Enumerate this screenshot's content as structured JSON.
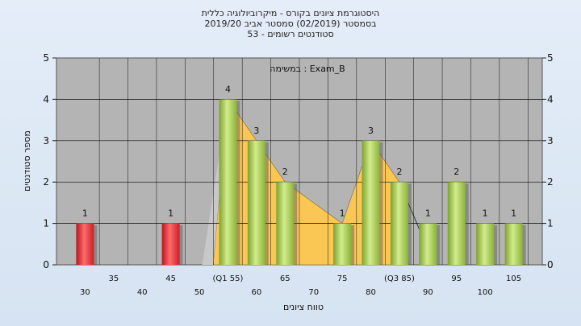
{
  "chart_data": {
    "type": "bar",
    "title_lines": [
      "היסטוגרמת ציונים בקורס - מיקרוביולוגיה כללית",
      "בסמסטר  (02/2019)  סמסטר אביב 2019/20",
      "סטודנטים רשומים - 53"
    ],
    "annotation": "במשימה : Exam_B",
    "xlabel": "טווח ציונים",
    "ylabel": "מספר סטודנטים",
    "ylim": [
      0,
      5
    ],
    "yticks": [
      0,
      1,
      2,
      3,
      4,
      5
    ],
    "xlim": [
      25,
      110
    ],
    "x_tick_labels": [
      {
        "x": 30,
        "label": "30",
        "row": 2
      },
      {
        "x": 35,
        "label": "35",
        "row": 1
      },
      {
        "x": 40,
        "label": "40",
        "row": 2
      },
      {
        "x": 45,
        "label": "45",
        "row": 1
      },
      {
        "x": 50,
        "label": "50",
        "row": 2
      },
      {
        "x": 55,
        "label": "(Q1 55)",
        "row": 1
      },
      {
        "x": 60,
        "label": "60",
        "row": 2
      },
      {
        "x": 65,
        "label": "65",
        "row": 1
      },
      {
        "x": 70,
        "label": "70",
        "row": 2
      },
      {
        "x": 75,
        "label": "75",
        "row": 1
      },
      {
        "x": 80,
        "label": "80",
        "row": 2
      },
      {
        "x": 85,
        "label": "(Q3 85)",
        "row": 1
      },
      {
        "x": 90,
        "label": "90",
        "row": 2
      },
      {
        "x": 95,
        "label": "95",
        "row": 1
      },
      {
        "x": 100,
        "label": "100",
        "row": 2
      },
      {
        "x": 105,
        "label": "105",
        "row": 1
      }
    ],
    "bars": [
      {
        "x": 30,
        "value": 1,
        "status": "fail"
      },
      {
        "x": 45,
        "value": 1,
        "status": "fail"
      },
      {
        "x": 55,
        "value": 4,
        "status": "pass"
      },
      {
        "x": 60,
        "value": 3,
        "status": "pass"
      },
      {
        "x": 65,
        "value": 2,
        "status": "pass"
      },
      {
        "x": 75,
        "value": 1,
        "status": "pass"
      },
      {
        "x": 80,
        "value": 3,
        "status": "pass"
      },
      {
        "x": 85,
        "value": 2,
        "status": "pass"
      },
      {
        "x": 90,
        "value": 1,
        "status": "pass"
      },
      {
        "x": 95,
        "value": 2,
        "status": "pass"
      },
      {
        "x": 100,
        "value": 1,
        "status": "pass"
      },
      {
        "x": 105,
        "value": 1,
        "status": "pass"
      }
    ],
    "quartile_band": {
      "from": 55,
      "to": 85
    },
    "grid": true,
    "colors": {
      "plot_bg": "#b4b4b4",
      "fail_bar": "#d9333a",
      "pass_bar": "#9cc24a",
      "band": "#ffc94f"
    }
  }
}
